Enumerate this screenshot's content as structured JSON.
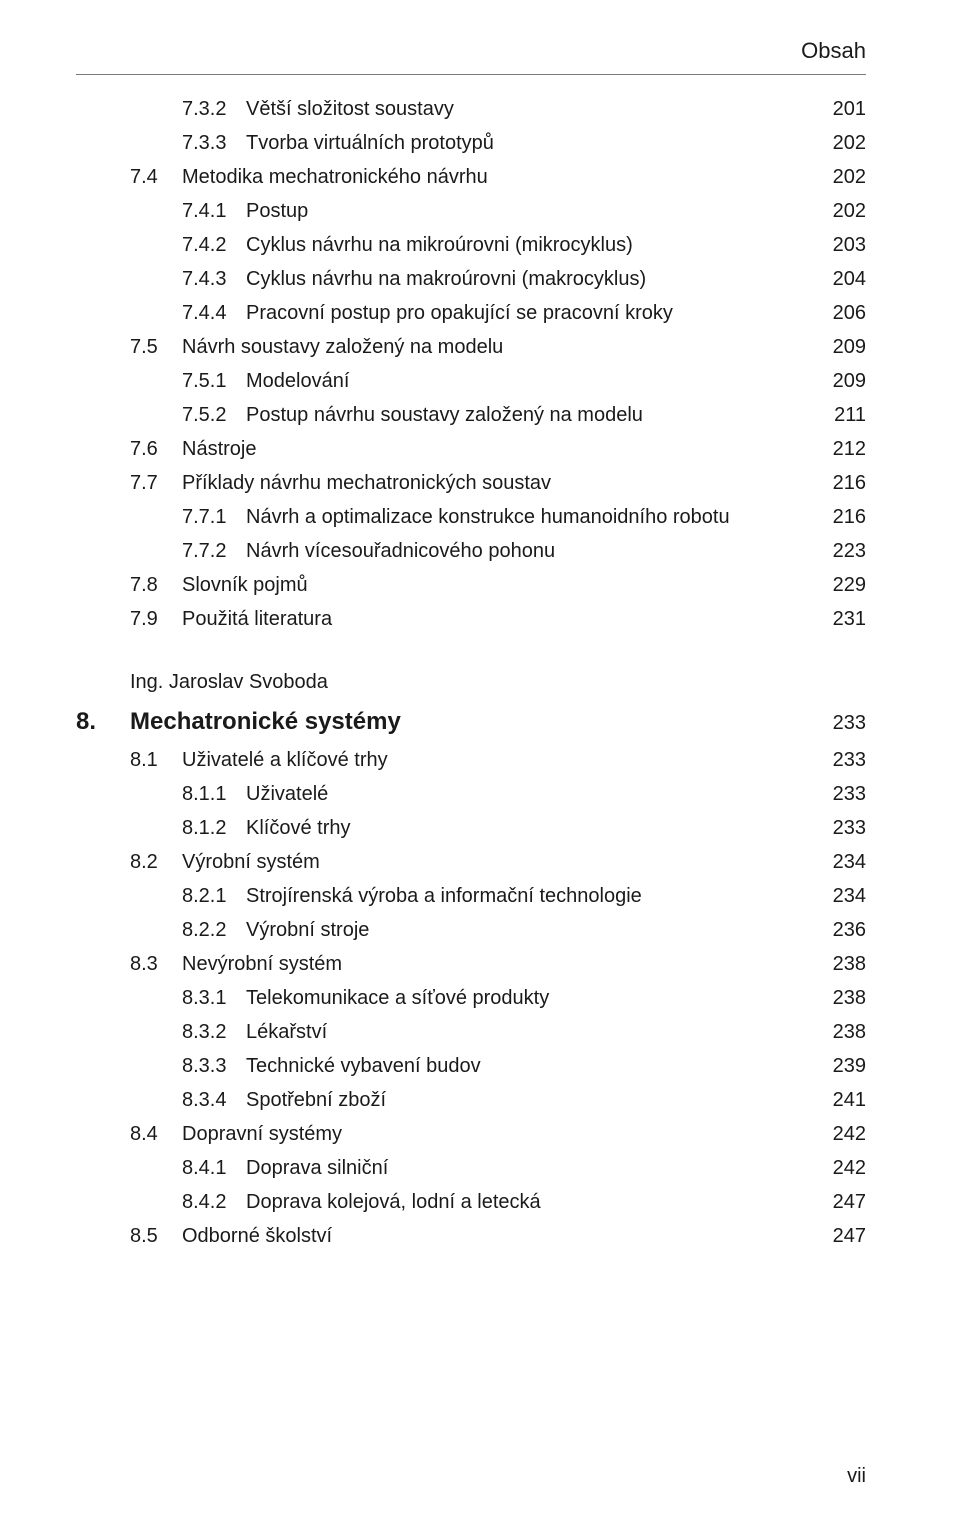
{
  "header": {
    "title": "Obsah"
  },
  "footer": {
    "page": "vii"
  },
  "author": "Ing. Jaroslav Svoboda",
  "chapter": {
    "num": "8.",
    "title": "Mechatronické systémy",
    "page": "233"
  },
  "toc_top": [
    {
      "lvl": 3,
      "num": "7.3.2",
      "title": "Větší složitost soustavy",
      "page": "201"
    },
    {
      "lvl": 3,
      "num": "7.3.3",
      "title": "Tvorba virtuálních prototypů",
      "page": "202"
    },
    {
      "lvl": 2,
      "num": "7.4",
      "title": "Metodika mechatronického návrhu",
      "page": "202"
    },
    {
      "lvl": 3,
      "num": "7.4.1",
      "title": "Postup",
      "page": "202"
    },
    {
      "lvl": 3,
      "num": "7.4.2",
      "title": "Cyklus návrhu na mikroúrovni (mikrocyklus)",
      "page": "203"
    },
    {
      "lvl": 3,
      "num": "7.4.3",
      "title": "Cyklus návrhu na makroúrovni (makrocyklus)",
      "page": "204"
    },
    {
      "lvl": 3,
      "num": "7.4.4",
      "title": "Pracovní postup pro opakující se pracovní kroky",
      "page": "206"
    },
    {
      "lvl": 2,
      "num": "7.5",
      "title": "Návrh soustavy založený na modelu",
      "page": "209"
    },
    {
      "lvl": 3,
      "num": "7.5.1",
      "title": "Modelování",
      "page": "209"
    },
    {
      "lvl": 3,
      "num": "7.5.2",
      "title": "Postup návrhu soustavy založený na modelu",
      "page": "211"
    },
    {
      "lvl": 2,
      "num": "7.6",
      "title": "Nástroje",
      "page": "212"
    },
    {
      "lvl": 2,
      "num": "7.7",
      "title": "Příklady návrhu mechatronických soustav",
      "page": "216"
    },
    {
      "lvl": 3,
      "num": "7.7.1",
      "title": "Návrh a optimalizace konstrukce humanoidního robotu",
      "page": "216"
    },
    {
      "lvl": 3,
      "num": "7.7.2",
      "title": "Návrh vícesouřadnicového pohonu",
      "page": "223"
    },
    {
      "lvl": 2,
      "num": "7.8",
      "title": "Slovník pojmů",
      "page": "229"
    },
    {
      "lvl": 2,
      "num": "7.9",
      "title": "Použitá literatura",
      "page": "231"
    }
  ],
  "toc_ch8": [
    {
      "lvl": 2,
      "num": "8.1",
      "title": "Uživatelé a klíčové trhy",
      "page": "233"
    },
    {
      "lvl": 3,
      "num": "8.1.1",
      "title": "Uživatelé",
      "page": "233"
    },
    {
      "lvl": 3,
      "num": "8.1.2",
      "title": "Klíčové trhy",
      "page": "233"
    },
    {
      "lvl": 2,
      "num": "8.2",
      "title": "Výrobní systém",
      "page": "234"
    },
    {
      "lvl": 3,
      "num": "8.2.1",
      "title": "Strojírenská výroba a informační technologie",
      "page": "234"
    },
    {
      "lvl": 3,
      "num": "8.2.2",
      "title": "Výrobní stroje",
      "page": "236"
    },
    {
      "lvl": 2,
      "num": "8.3",
      "title": "Nevýrobní systém",
      "page": "238"
    },
    {
      "lvl": 3,
      "num": "8.3.1",
      "title": "Telekomunikace a síťové produkty",
      "page": "238"
    },
    {
      "lvl": 3,
      "num": "8.3.2",
      "title": "Lékařství",
      "page": "238"
    },
    {
      "lvl": 3,
      "num": "8.3.3",
      "title": "Technické vybavení budov",
      "page": "239"
    },
    {
      "lvl": 3,
      "num": "8.3.4",
      "title": "Spotřební zboží",
      "page": "241"
    },
    {
      "lvl": 2,
      "num": "8.4",
      "title": "Dopravní systémy",
      "page": "242"
    },
    {
      "lvl": 3,
      "num": "8.4.1",
      "title": "Doprava silniční",
      "page": "242"
    },
    {
      "lvl": 3,
      "num": "8.4.2",
      "title": "Doprava kolejová, lodní a letecká",
      "page": "247"
    },
    {
      "lvl": 2,
      "num": "8.5",
      "title": "Odborné školství",
      "page": "247"
    }
  ]
}
